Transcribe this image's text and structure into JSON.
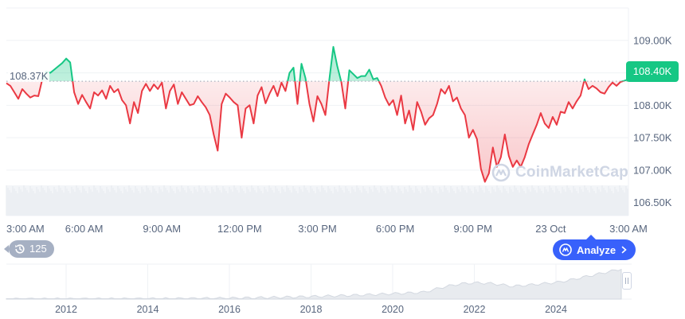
{
  "chart_data": {
    "type": "line",
    "x_ticks": [
      "3:00 AM",
      "6:00 AM",
      "9:00 AM",
      "12:00 PM",
      "3:00 PM",
      "6:00 PM",
      "9:00 PM",
      "23 Oct",
      "3:00 AM"
    ],
    "y_ticks": [
      "109.00K",
      "108.50K",
      "108.00K",
      "107.50K",
      "107.00K",
      "106.50K"
    ],
    "ylim": [
      106.3,
      109.5
    ],
    "reference_value": 108.37,
    "reference_label": "108.37K",
    "current_price_label": "108.40K",
    "colors": {
      "above": "#16c784",
      "below": "#ea3943",
      "above_fill": "#16c784",
      "below_fill": "#ea3943"
    },
    "series": [
      {
        "values": [
          108.34,
          108.3,
          108.2,
          108.1,
          108.25,
          108.18,
          108.12,
          108.15,
          108.14,
          108.4,
          108.52,
          108.5,
          108.55,
          108.6,
          108.65,
          108.72,
          108.66,
          108.2,
          108.02,
          108.16,
          108.05,
          107.95,
          108.2,
          108.15,
          108.23,
          108.1,
          108.3,
          108.2,
          108.25,
          108.08,
          108.0,
          107.72,
          108.05,
          107.88,
          108.22,
          108.33,
          108.22,
          108.32,
          108.25,
          108.35,
          107.95,
          108.22,
          108.32,
          108.02,
          108.2,
          108.1,
          108.0,
          108.02,
          108.14,
          108.05,
          107.97,
          107.85,
          107.55,
          107.3,
          108.02,
          108.18,
          108.12,
          108.05,
          108.0,
          107.5,
          107.95,
          108.0,
          107.72,
          108.15,
          108.28,
          108.03,
          108.18,
          108.3,
          108.14,
          108.35,
          108.22,
          108.5,
          108.58,
          108.02,
          108.64,
          108.42,
          108.02,
          107.75,
          108.14,
          108.02,
          107.85,
          108.4,
          108.9,
          108.6,
          108.36,
          107.95,
          108.54,
          108.48,
          108.42,
          108.45,
          108.45,
          108.55,
          108.4,
          108.42,
          108.3,
          108.12,
          108.0,
          108.08,
          107.85,
          108.15,
          107.72,
          107.92,
          107.62,
          108.05,
          107.9,
          107.7,
          107.8,
          107.85,
          108.02,
          108.25,
          108.18,
          108.3,
          108.06,
          108.12,
          107.95,
          107.85,
          107.5,
          107.62,
          107.48,
          107.02,
          106.82,
          106.95,
          107.35,
          107.05,
          107.2,
          107.55,
          107.22,
          107.05,
          107.15,
          107.05,
          107.2,
          107.4,
          107.55,
          107.7,
          107.88,
          107.72,
          107.65,
          107.82,
          107.7,
          107.9,
          107.88,
          108.05,
          107.95,
          108.06,
          108.15,
          108.4,
          108.25,
          108.3,
          108.26,
          108.2,
          108.18,
          108.28,
          108.35,
          108.3,
          108.36,
          108.38,
          108.4
        ]
      }
    ],
    "nav_ticks": [
      "2012",
      "2014",
      "2016",
      "2018",
      "2020",
      "2022",
      "2024"
    ]
  },
  "ui": {
    "history_count": "125",
    "analyze_label": "Analyze",
    "watermark_text": "CoinMarketCap"
  }
}
